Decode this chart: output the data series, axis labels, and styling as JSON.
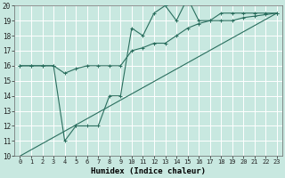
{
  "xlabel": "Humidex (Indice chaleur)",
  "ylabel": "",
  "xlim": [
    -0.5,
    23.5
  ],
  "ylim": [
    10,
    20
  ],
  "xticks": [
    0,
    1,
    2,
    3,
    4,
    5,
    6,
    7,
    8,
    9,
    10,
    11,
    12,
    13,
    14,
    15,
    16,
    17,
    18,
    19,
    20,
    21,
    22,
    23
  ],
  "yticks": [
    10,
    11,
    12,
    13,
    14,
    15,
    16,
    17,
    18,
    19,
    20
  ],
  "bg_color": "#c8e8e0",
  "line_color": "#2a6e5e",
  "grid_color": "#ffffff",
  "line1_x": [
    0,
    1,
    2,
    3,
    4,
    5,
    5,
    6,
    7,
    8,
    9,
    10,
    11,
    12,
    13,
    14,
    15,
    16,
    17,
    18,
    19,
    20,
    21,
    22,
    23
  ],
  "line1_y": [
    16,
    16,
    16,
    16,
    11,
    12,
    12,
    12,
    12,
    14,
    14,
    18.5,
    18,
    19.5,
    20,
    19,
    20.5,
    19,
    19,
    19.5,
    19.5,
    19.5,
    19.5,
    19.5,
    19.5
  ],
  "line2_x": [
    0,
    1,
    2,
    3,
    4,
    5,
    6,
    7,
    8,
    9,
    10,
    11,
    12,
    13,
    14,
    15,
    16,
    17,
    18,
    19,
    20,
    21,
    22,
    23
  ],
  "line2_y": [
    16,
    16,
    16,
    16,
    15.5,
    15.8,
    16,
    16,
    16,
    16,
    17,
    17.2,
    17.5,
    17.5,
    18,
    18.5,
    18.8,
    19,
    19,
    19,
    19.2,
    19.3,
    19.4,
    19.5
  ],
  "line3_x": [
    0,
    23
  ],
  "line3_y": [
    10,
    19.5
  ]
}
